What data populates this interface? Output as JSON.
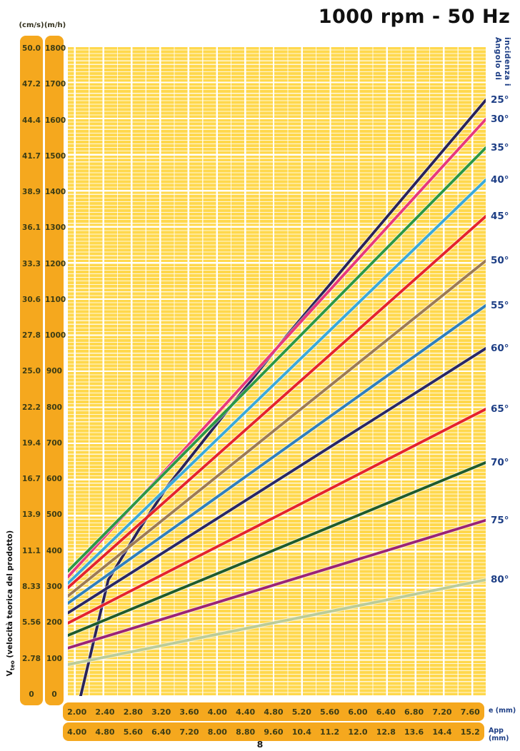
{
  "title": "1000 rpm - 50 Hz",
  "page_number": "8",
  "left_axis": {
    "cm_s_header": "(cm/s)",
    "m_h_header": "(m/h)",
    "cm_s_values": [
      "50.0",
      "47.2",
      "44.4",
      "41.7",
      "38.9",
      "36.1",
      "33.3",
      "30.6",
      "27.8",
      "25.0",
      "22.2",
      "19.4",
      "16.7",
      "13.9",
      "11.1",
      "8.33",
      "5.56",
      "2.78",
      "0"
    ],
    "m_h_values": [
      "1800",
      "1700",
      "1600",
      "1500",
      "1400",
      "1300",
      "1200",
      "1100",
      "1000",
      "900",
      "800",
      "700",
      "600",
      "500",
      "400",
      "300",
      "200",
      "100",
      "0"
    ],
    "title_v": "V",
    "title_sub": "teo",
    "title_rest": " (velocità teorica del prodotto)"
  },
  "right_axis": {
    "title_line1": "Angolo di",
    "title_line2": "incidenza i"
  },
  "bottom_axis": {
    "e_values": [
      "2.00",
      "2.40",
      "2.80",
      "3.20",
      "3.60",
      "4.00",
      "4.40",
      "4.80",
      "5.20",
      "5.60",
      "6.00",
      "6.40",
      "6.80",
      "7.20",
      "7.60"
    ],
    "e_label": "e (mm)",
    "app_values": [
      "4.00",
      "4.80",
      "5.60",
      "6.40",
      "7.20",
      "8.00",
      "8.80",
      "9.60",
      "10.4",
      "11.2",
      "12.0",
      "12.8",
      "13.6",
      "14.4",
      "15.2"
    ],
    "app_label": "App (mm)"
  },
  "colors": {
    "amber": "#F5A81E",
    "plot_yellow": "#FFD84D",
    "grid_white": "#FFFFFF",
    "label_navy": "#1D3E85",
    "axis_text": "#3C3C14",
    "title_color": "#101010"
  },
  "chart_data": {
    "type": "line",
    "title": "1000 rpm - 50 Hz",
    "xlabel": "e (mm)",
    "xlabel2": "App (mm)",
    "ylabel": "Vteo (velocità teorica del prodotto)",
    "y_units": [
      "cm/s",
      "m/h"
    ],
    "x_range_mm": [
      1.9,
      7.79
    ],
    "y_range_mh": [
      0,
      1800
    ],
    "x_ticks_e_mm": [
      2.0,
      2.4,
      2.8,
      3.2,
      3.6,
      4.0,
      4.4,
      4.8,
      5.2,
      5.6,
      6.0,
      6.4,
      6.8,
      7.2,
      7.6
    ],
    "x_ticks_app_mm": [
      4.0,
      4.8,
      5.6,
      6.4,
      7.2,
      8.0,
      8.8,
      9.6,
      10.4,
      11.2,
      12.0,
      12.8,
      13.6,
      14.4,
      15.2
    ],
    "y_ticks_mh": [
      0,
      100,
      200,
      300,
      400,
      500,
      600,
      700,
      800,
      900,
      1000,
      1100,
      1200,
      1300,
      1400,
      1500,
      1600,
      1700,
      1800
    ],
    "y_ticks_cms": [
      0,
      2.78,
      5.56,
      8.33,
      11.1,
      13.9,
      16.7,
      19.4,
      22.2,
      25.0,
      27.8,
      30.6,
      33.3,
      36.1,
      38.9,
      41.7,
      44.4,
      47.2,
      50.0
    ],
    "grid": {
      "h_minor_step_mh": 10,
      "h_major_step_mh": 100,
      "v_minor_step_mm": 0.2,
      "v_major_step_mm": 0.4
    },
    "legend_title": "Angolo di incidenza i",
    "series": [
      {
        "name": "25°",
        "angle_deg": 25,
        "color": "#29235C",
        "points_e_vmh": [
          [
            2.08,
            0
          ],
          [
            2.47,
            322
          ],
          [
            2.9,
            460
          ],
          [
            3.31,
            583
          ],
          [
            3.79,
            702
          ],
          [
            4.97,
            995
          ],
          [
            6.3,
            1305
          ],
          [
            7.79,
            1651
          ]
        ]
      },
      {
        "name": "30°",
        "angle_deg": 30,
        "color": "#E8387C",
        "points_e_vmh": [
          [
            1.9,
            330
          ],
          [
            7.79,
            1598
          ]
        ]
      },
      {
        "name": "35°",
        "angle_deg": 35,
        "color": "#2B9846",
        "points_e_vmh": [
          [
            1.9,
            346
          ],
          [
            7.79,
            1519
          ]
        ]
      },
      {
        "name": "40°",
        "angle_deg": 40,
        "color": "#39A9DC",
        "points_e_vmh": [
          [
            1.9,
            312
          ],
          [
            7.79,
            1430
          ]
        ]
      },
      {
        "name": "45°",
        "angle_deg": 45,
        "color": "#E5232D",
        "points_e_vmh": [
          [
            1.9,
            300
          ],
          [
            7.79,
            1329
          ]
        ]
      },
      {
        "name": "50°",
        "angle_deg": 50,
        "color": "#9C7A55",
        "points_e_vmh": [
          [
            1.9,
            277
          ],
          [
            7.79,
            1206
          ]
        ]
      },
      {
        "name": "55°",
        "angle_deg": 55,
        "color": "#2E7FBE",
        "points_e_vmh": [
          [
            1.9,
            257
          ],
          [
            7.79,
            1082
          ]
        ]
      },
      {
        "name": "60°",
        "angle_deg": 60,
        "color": "#282767",
        "points_e_vmh": [
          [
            1.9,
            230
          ],
          [
            7.79,
            963
          ]
        ]
      },
      {
        "name": "65°",
        "angle_deg": 65,
        "color": "#E5232D",
        "points_e_vmh": [
          [
            1.9,
            202
          ],
          [
            7.79,
            795
          ]
        ]
      },
      {
        "name": "70°",
        "angle_deg": 70,
        "color": "#1E5B2D",
        "points_e_vmh": [
          [
            1.9,
            168
          ],
          [
            7.79,
            647
          ]
        ]
      },
      {
        "name": "75°",
        "angle_deg": 75,
        "color": "#9B2377",
        "points_e_vmh": [
          [
            1.9,
            133
          ],
          [
            7.79,
            487
          ]
        ]
      },
      {
        "name": "80°",
        "angle_deg": 80,
        "color": "#BACC99",
        "points_e_vmh": [
          [
            1.9,
            87
          ],
          [
            7.79,
            322
          ]
        ]
      }
    ]
  }
}
